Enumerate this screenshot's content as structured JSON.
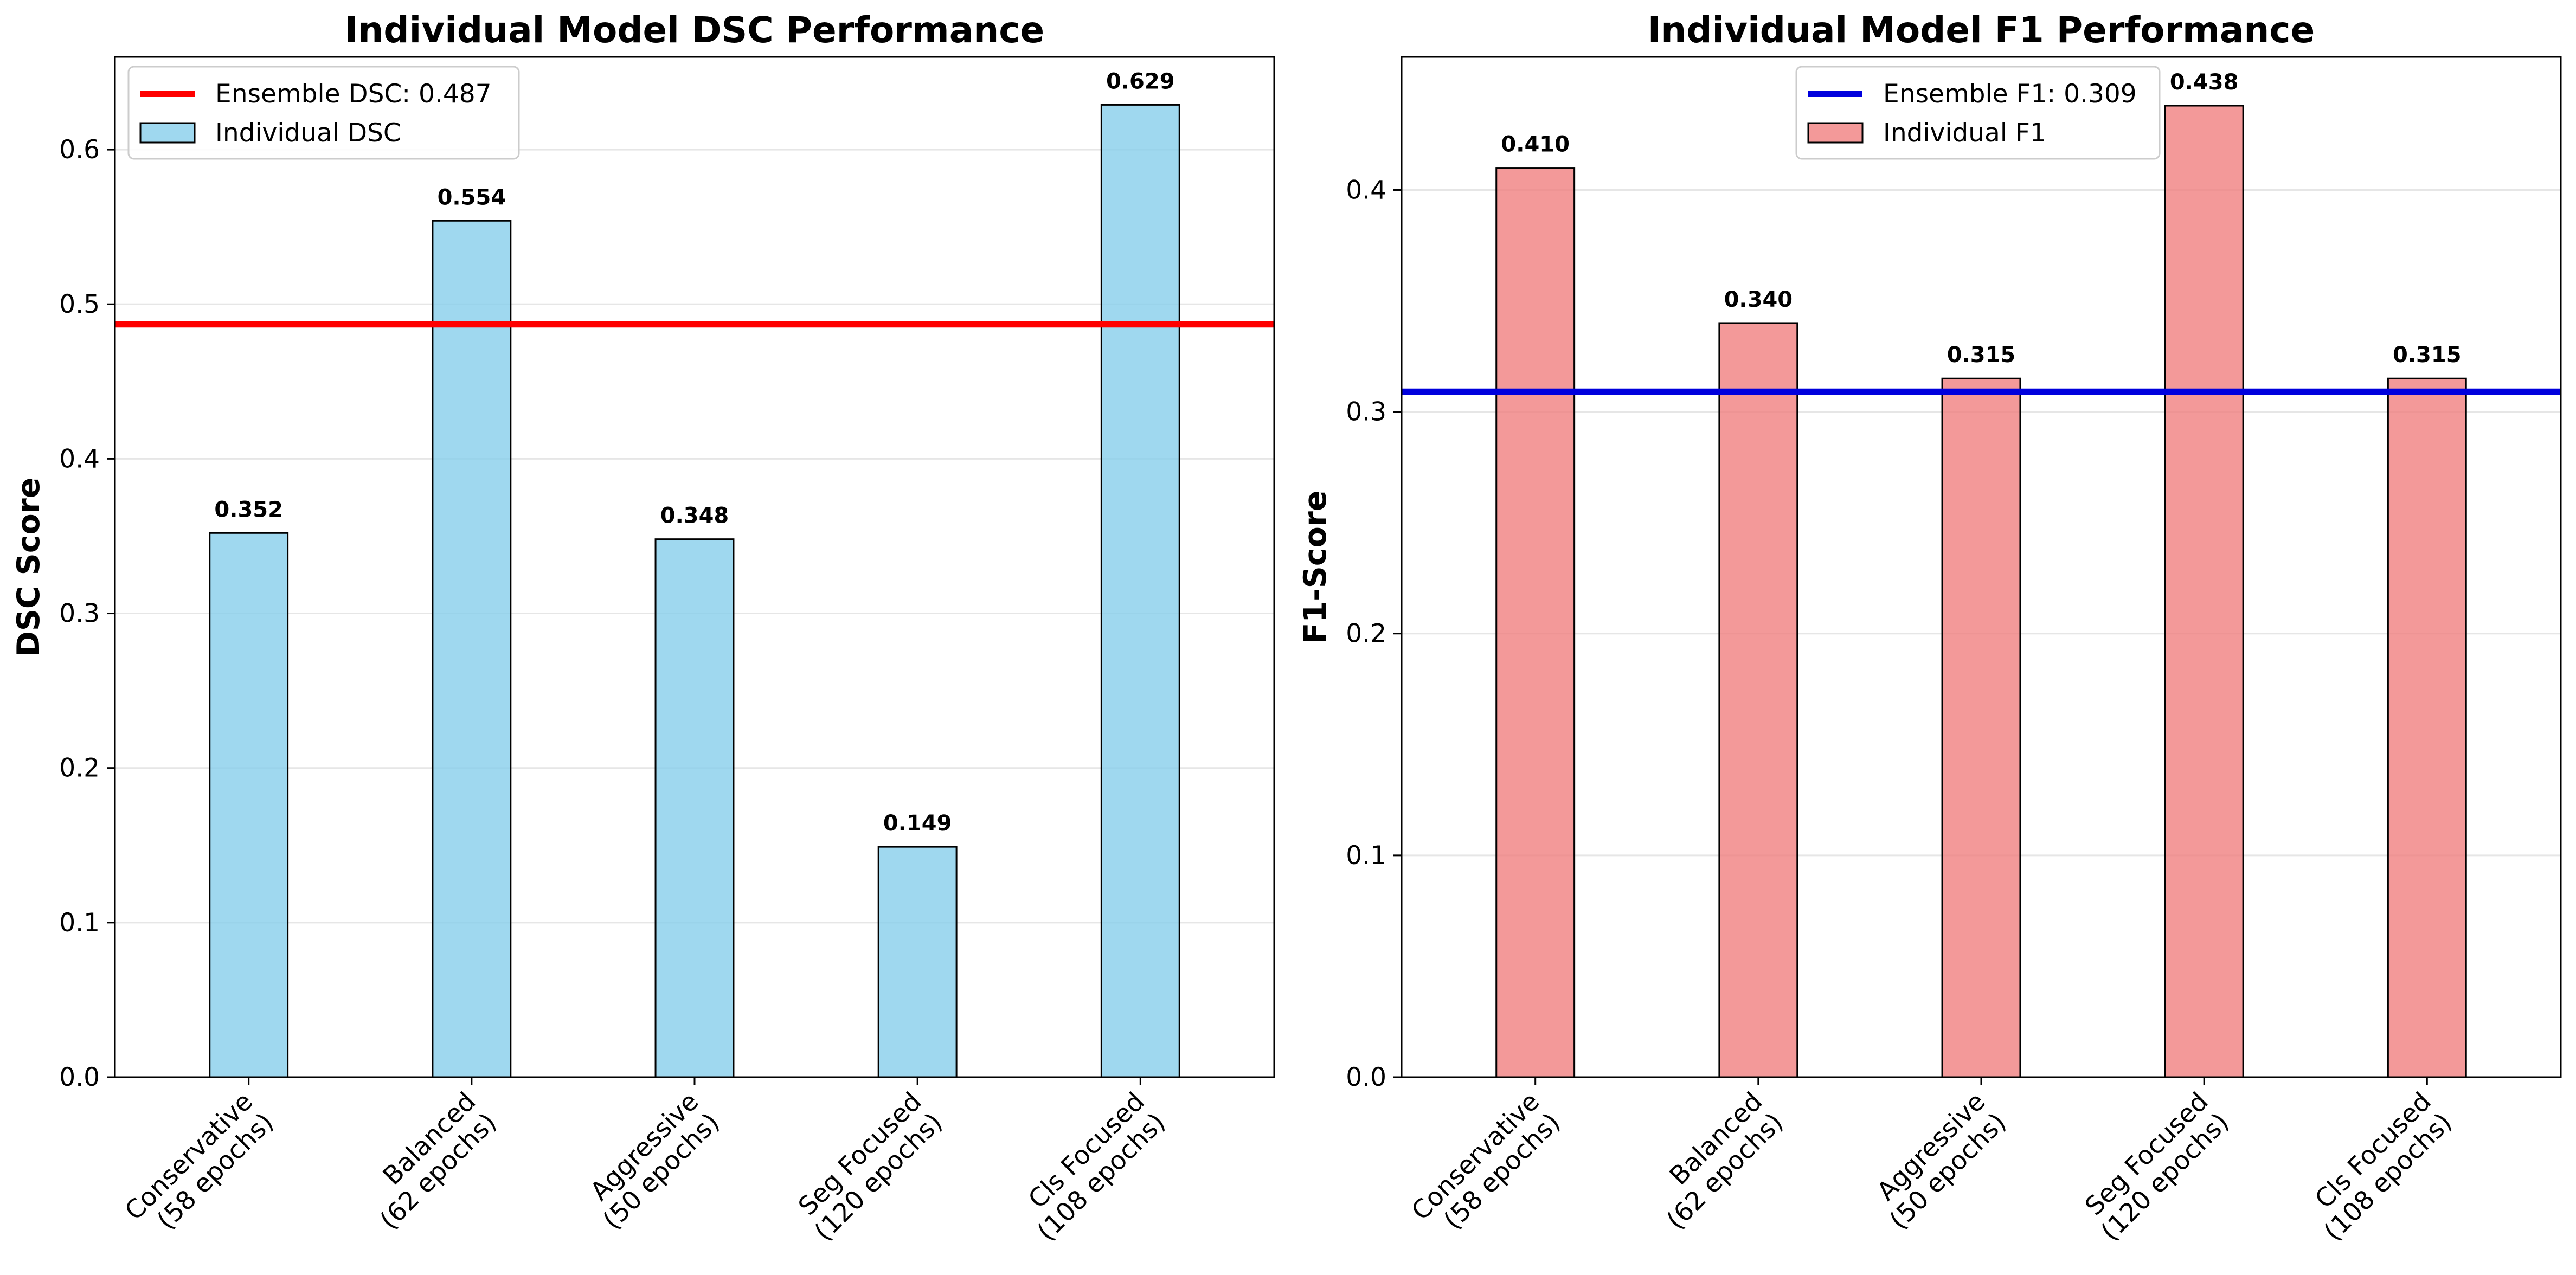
{
  "chart_data": [
    {
      "type": "bar",
      "title": "Individual Model DSC Performance",
      "xlabel": "",
      "ylabel": "DSC Score",
      "categories": [
        "Conservative\n(58 epochs)",
        "Balanced\n(62 epochs)",
        "Aggressive\n(50 epochs)",
        "Seg Focused\n(120 epochs)",
        "Cls Focused\n(108 epochs)"
      ],
      "series": [
        {
          "name": "Individual DSC",
          "values": [
            0.352,
            0.554,
            0.348,
            0.149,
            0.629
          ],
          "color": "#87CEEB"
        }
      ],
      "data_labels": [
        "0.352",
        "0.554",
        "0.348",
        "0.149",
        "0.629"
      ],
      "reference_line": {
        "name": "Ensemble DSC: 0.487",
        "value": 0.487,
        "color": "#FF0000"
      },
      "ylim": [
        0,
        0.66
      ],
      "yticks": [
        0.0,
        0.1,
        0.2,
        0.3,
        0.4,
        0.5,
        0.6
      ],
      "ytick_labels": [
        "0.0",
        "0.1",
        "0.2",
        "0.3",
        "0.4",
        "0.5",
        "0.6"
      ],
      "grid": "y",
      "legend": "top-left"
    },
    {
      "type": "bar",
      "title": "Individual Model F1 Performance",
      "xlabel": "",
      "ylabel": "F1-Score",
      "categories": [
        "Conservative\n(58 epochs)",
        "Balanced\n(62 epochs)",
        "Aggressive\n(50 epochs)",
        "Seg Focused\n(120 epochs)",
        "Cls Focused\n(108 epochs)"
      ],
      "series": [
        {
          "name": "Individual F1",
          "values": [
            0.41,
            0.34,
            0.315,
            0.438,
            0.315
          ],
          "color": "#F08080"
        }
      ],
      "data_labels": [
        "0.410",
        "0.340",
        "0.315",
        "0.438",
        "0.315"
      ],
      "reference_line": {
        "name": "Ensemble F1: 0.309",
        "value": 0.309,
        "color": "#0000DD"
      },
      "ylim": [
        0,
        0.46
      ],
      "yticks": [
        0.0,
        0.1,
        0.2,
        0.3,
        0.4
      ],
      "ytick_labels": [
        "0.0",
        "0.1",
        "0.2",
        "0.3",
        "0.4"
      ],
      "grid": "y",
      "legend": "top-center"
    }
  ]
}
